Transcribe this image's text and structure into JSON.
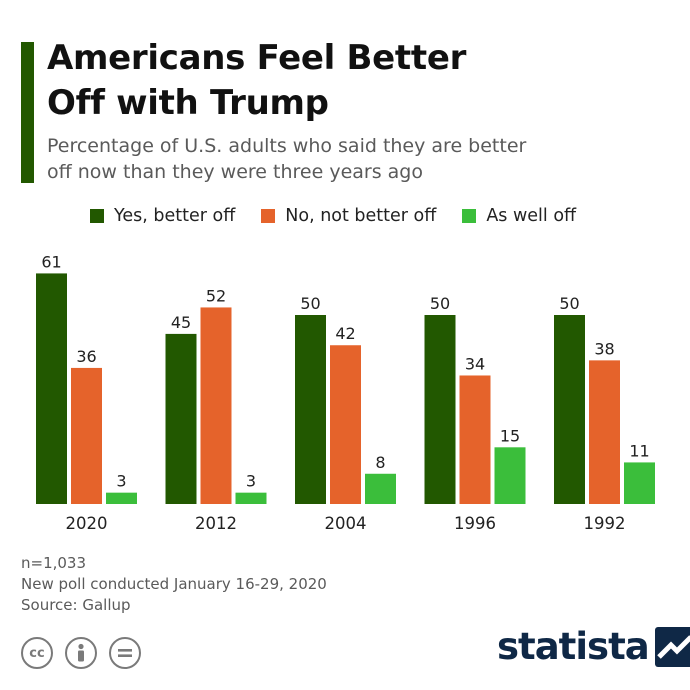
{
  "header": {
    "title": "Americans Feel Better\nOff with Trump",
    "subtitle": "Percentage of U.S. adults who said they are better\noff now than they were three years ago"
  },
  "colors": {
    "accent": "#225800",
    "yes": "#225800",
    "no": "#e5632b",
    "as_well": "#3bbe3b",
    "logo": "#0f2846"
  },
  "chart_data": {
    "type": "bar",
    "title": "Americans Feel Better Off with Trump",
    "subtitle": "Percentage of U.S. adults who said they are better off now than they were three years ago",
    "categories": [
      "2020",
      "2012",
      "2004",
      "1996",
      "1992"
    ],
    "series": [
      {
        "name": "Yes, better off",
        "values": [
          61,
          45,
          50,
          50,
          50
        ]
      },
      {
        "name": "No, not better off",
        "values": [
          36,
          52,
          42,
          34,
          38
        ]
      },
      {
        "name": "As well off",
        "values": [
          3,
          3,
          8,
          15,
          11
        ]
      }
    ],
    "xlabel": "",
    "ylabel": "",
    "ylim": [
      0,
      70
    ],
    "grid": false,
    "legend": "top"
  },
  "footer": {
    "notes": [
      "n=1,033",
      "New poll conducted January 16-29, 2020",
      "Source: Gallup"
    ],
    "license_icons": [
      "cc-icon",
      "attribution-icon",
      "no-derivatives-icon"
    ]
  },
  "brand": {
    "name": "statista"
  }
}
